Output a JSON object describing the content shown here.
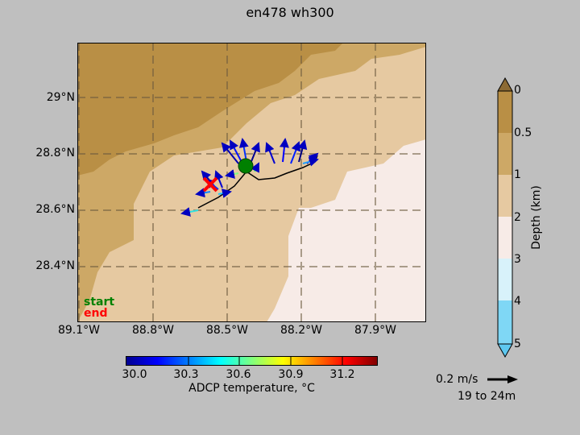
{
  "title": "en478 wh300",
  "map": {
    "lat_ticks": [
      "29°N",
      "28.8°N",
      "28.6°N",
      "28.4°N"
    ],
    "lon_ticks": [
      "89.1°W",
      "88.8°W",
      "88.5°W",
      "88.2°W",
      "87.9°W"
    ],
    "start_label": "start",
    "end_label": "end",
    "colors": {
      "land_dark": "#b98f45",
      "depth_mid": "#cda866",
      "depth_light": "#e6c9a1",
      "deep": "#f7ebe7",
      "ship_track": "#000000",
      "start_marker": "#008000",
      "end_marker": "#ff0000"
    },
    "start_marker": {
      "lon": -88.44,
      "lat": 28.76
    },
    "end_marker": {
      "lon": -88.6,
      "lat": 28.68
    }
  },
  "temperature_colorbar": {
    "ticks": [
      "30.0",
      "30.3",
      "30.6",
      "30.9",
      "31.2"
    ],
    "label": "ADCP temperature, °C"
  },
  "depth_colorbar": {
    "ticks": [
      "0",
      "0.5",
      "1",
      "2",
      "3",
      "4",
      "5"
    ],
    "label": "Depth (km)"
  },
  "scale_arrow": {
    "label": "0.2 m/s",
    "depth_range": "19 to 24m"
  }
}
